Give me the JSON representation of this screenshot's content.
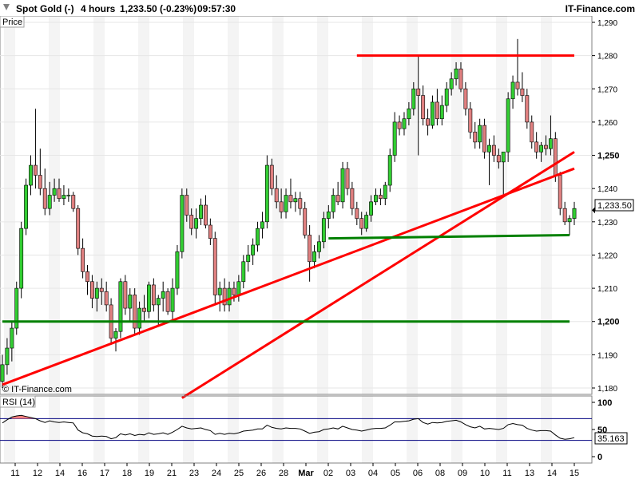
{
  "header": {
    "instrument": "Spot Gold (-)",
    "timeframe": "4 hours",
    "quote": "1,233.50 (-0.23%)",
    "time": "09:57:30",
    "brand": "IT-Finance.com"
  },
  "price_panel": {
    "label": "Price",
    "watermark": "© IT-Finance.com",
    "current_price_label": "1,233.50"
  },
  "rsi_panel": {
    "label": "RSI (14)",
    "current_value_label": "35.163",
    "level_labels": [
      "100",
      "50",
      "0"
    ]
  },
  "colors": {
    "up_candle": "#32cd32",
    "down_candle": "#e08080",
    "trendline_red": "#ff0000",
    "trendline_green": "#008000",
    "rsi_line": "#000000",
    "rsi_level_lines": "#000080",
    "rsi_overbought_fill": "#ff8080"
  },
  "chart_data": [
    {
      "type": "candlestick",
      "title": "Spot Gold (-)",
      "timeframe": "4 hours",
      "y_unit": "price",
      "ylim": [
        1178,
        1292
      ],
      "y_ticks": [
        1180,
        1190,
        1200,
        1210,
        1220,
        1230,
        1240,
        1250,
        1260,
        1270,
        1280,
        1290
      ],
      "y_tick_labels": [
        "1,180",
        "1,190",
        "1,200",
        "1,210",
        "1,220",
        "1,230",
        "1,240",
        "1,250",
        "1,260",
        "1,270",
        "1,280",
        "1,290"
      ],
      "x_tick_labels": [
        "11",
        "12",
        "14",
        "16",
        "17",
        "18",
        "19",
        "21",
        "23",
        "24",
        "25",
        "26",
        "28",
        "Mar",
        "02",
        "03",
        "04",
        "05",
        "06",
        "08",
        "09",
        "10",
        "11",
        "13",
        "14",
        "15"
      ],
      "ohlc": [
        [
          1182,
          1190,
          1180,
          1187
        ],
        [
          1187,
          1195,
          1184,
          1192
        ],
        [
          1192,
          1200,
          1188,
          1198
        ],
        [
          1198,
          1212,
          1196,
          1210
        ],
        [
          1210,
          1230,
          1207,
          1228
        ],
        [
          1228,
          1243,
          1226,
          1241
        ],
        [
          1241,
          1250,
          1238,
          1247
        ],
        [
          1247,
          1264,
          1240,
          1244
        ],
        [
          1244,
          1252,
          1238,
          1240
        ],
        [
          1240,
          1246,
          1232,
          1234
        ],
        [
          1234,
          1242,
          1232,
          1238
        ],
        [
          1238,
          1243,
          1236,
          1240
        ],
        [
          1240,
          1243,
          1236,
          1237
        ],
        [
          1237,
          1241,
          1235,
          1238
        ],
        [
          1238,
          1240,
          1236,
          1238
        ],
        [
          1238,
          1239,
          1233,
          1234
        ],
        [
          1234,
          1235,
          1220,
          1222
        ],
        [
          1222,
          1225,
          1213,
          1215
        ],
        [
          1215,
          1217,
          1208,
          1212
        ],
        [
          1212,
          1214,
          1204,
          1207
        ],
        [
          1207,
          1212,
          1203,
          1210
        ],
        [
          1210,
          1213,
          1205,
          1209
        ],
        [
          1209,
          1212,
          1203,
          1205
        ],
        [
          1205,
          1207,
          1193,
          1195
        ],
        [
          1195,
          1198,
          1191,
          1197
        ],
        [
          1197,
          1213,
          1195,
          1212
        ],
        [
          1212,
          1214,
          1202,
          1204
        ],
        [
          1204,
          1210,
          1200,
          1208
        ],
        [
          1208,
          1210,
          1196,
          1198
        ],
        [
          1198,
          1206,
          1196,
          1204
        ],
        [
          1204,
          1208,
          1200,
          1203
        ],
        [
          1203,
          1212,
          1201,
          1211
        ],
        [
          1211,
          1213,
          1203,
          1205
        ],
        [
          1205,
          1208,
          1199,
          1207
        ],
        [
          1207,
          1212,
          1203,
          1209
        ],
        [
          1209,
          1210,
          1202,
          1203
        ],
        [
          1203,
          1213,
          1200,
          1210
        ],
        [
          1210,
          1223,
          1208,
          1221
        ],
        [
          1221,
          1240,
          1219,
          1238
        ],
        [
          1238,
          1240,
          1230,
          1232
        ],
        [
          1232,
          1234,
          1226,
          1228
        ],
        [
          1228,
          1234,
          1225,
          1231
        ],
        [
          1231,
          1237,
          1229,
          1235
        ],
        [
          1235,
          1238,
          1228,
          1229
        ],
        [
          1229,
          1231,
          1223,
          1225
        ],
        [
          1225,
          1227,
          1205,
          1208
        ],
        [
          1208,
          1212,
          1203,
          1210
        ],
        [
          1210,
          1213,
          1203,
          1205
        ],
        [
          1205,
          1212,
          1203,
          1210
        ],
        [
          1210,
          1212,
          1206,
          1208
        ],
        [
          1208,
          1214,
          1206,
          1212
        ],
        [
          1212,
          1220,
          1210,
          1218
        ],
        [
          1218,
          1223,
          1215,
          1220
        ],
        [
          1220,
          1225,
          1217,
          1223
        ],
        [
          1223,
          1230,
          1221,
          1228
        ],
        [
          1228,
          1233,
          1225,
          1230
        ],
        [
          1230,
          1250,
          1228,
          1247
        ],
        [
          1247,
          1249,
          1238,
          1240
        ],
        [
          1240,
          1244,
          1234,
          1236
        ],
        [
          1236,
          1240,
          1231,
          1233
        ],
        [
          1233,
          1240,
          1231,
          1238
        ],
        [
          1238,
          1243,
          1234,
          1236
        ],
        [
          1236,
          1239,
          1233,
          1237
        ],
        [
          1237,
          1239,
          1232,
          1234
        ],
        [
          1234,
          1236,
          1225,
          1226
        ],
        [
          1226,
          1229,
          1212,
          1218
        ],
        [
          1218,
          1223,
          1216,
          1221
        ],
        [
          1221,
          1226,
          1219,
          1224
        ],
        [
          1224,
          1233,
          1222,
          1231
        ],
        [
          1231,
          1235,
          1228,
          1233
        ],
        [
          1233,
          1240,
          1231,
          1238
        ],
        [
          1238,
          1242,
          1235,
          1236
        ],
        [
          1236,
          1248,
          1234,
          1246
        ],
        [
          1246,
          1248,
          1238,
          1240
        ],
        [
          1240,
          1242,
          1232,
          1234
        ],
        [
          1234,
          1236,
          1229,
          1231
        ],
        [
          1231,
          1233,
          1226,
          1228
        ],
        [
          1228,
          1233,
          1227,
          1232
        ],
        [
          1232,
          1238,
          1230,
          1236
        ],
        [
          1236,
          1240,
          1235,
          1238
        ],
        [
          1238,
          1240,
          1235,
          1237
        ],
        [
          1237,
          1242,
          1235,
          1241
        ],
        [
          1241,
          1252,
          1239,
          1250
        ],
        [
          1250,
          1263,
          1248,
          1260
        ],
        [
          1260,
          1262,
          1256,
          1258
        ],
        [
          1258,
          1263,
          1256,
          1261
        ],
        [
          1261,
          1266,
          1259,
          1264
        ],
        [
          1264,
          1272,
          1262,
          1270
        ],
        [
          1270,
          1280,
          1250,
          1268
        ],
        [
          1268,
          1271,
          1259,
          1261
        ],
        [
          1261,
          1264,
          1256,
          1259
        ],
        [
          1259,
          1268,
          1258,
          1266
        ],
        [
          1266,
          1270,
          1259,
          1261
        ],
        [
          1261,
          1268,
          1259,
          1265
        ],
        [
          1265,
          1272,
          1263,
          1270
        ],
        [
          1270,
          1275,
          1268,
          1273
        ],
        [
          1273,
          1278,
          1271,
          1276
        ],
        [
          1276,
          1278,
          1269,
          1270
        ],
        [
          1270,
          1272,
          1262,
          1264
        ],
        [
          1264,
          1266,
          1255,
          1257
        ],
        [
          1257,
          1260,
          1252,
          1254
        ],
        [
          1254,
          1261,
          1252,
          1259
        ],
        [
          1259,
          1261,
          1249,
          1251
        ],
        [
          1251,
          1255,
          1241,
          1253
        ],
        [
          1253,
          1256,
          1248,
          1250
        ],
        [
          1250,
          1252,
          1246,
          1248
        ],
        [
          1248,
          1250,
          1238,
          1251
        ],
        [
          1251,
          1269,
          1248,
          1267
        ],
        [
          1267,
          1274,
          1264,
          1272
        ],
        [
          1272,
          1285,
          1268,
          1270
        ],
        [
          1270,
          1275,
          1266,
          1268
        ],
        [
          1268,
          1270,
          1258,
          1260
        ],
        [
          1260,
          1262,
          1252,
          1254
        ],
        [
          1254,
          1257,
          1249,
          1251
        ],
        [
          1251,
          1254,
          1248,
          1253
        ],
        [
          1253,
          1256,
          1250,
          1252
        ],
        [
          1252,
          1262,
          1250,
          1255
        ],
        [
          1255,
          1257,
          1242,
          1244
        ],
        [
          1244,
          1245,
          1232,
          1234
        ],
        [
          1234,
          1236,
          1229,
          1230
        ],
        [
          1230,
          1232,
          1226,
          1231
        ],
        [
          1231,
          1236,
          1229,
          1234
        ]
      ],
      "trendlines": [
        {
          "color": "red",
          "from": {
            "bar": 0,
            "price": 1181
          },
          "to": {
            "bar": 121,
            "price": 1246
          }
        },
        {
          "color": "red",
          "from": {
            "bar": 38,
            "price": 1177
          },
          "to": {
            "bar": 121,
            "price": 1251
          }
        },
        {
          "color": "red",
          "from": {
            "bar": 75,
            "price": 1280
          },
          "to": {
            "bar": 121,
            "price": 1280
          }
        },
        {
          "color": "green",
          "from": {
            "bar": 69,
            "price": 1225
          },
          "to": {
            "bar": 120,
            "price": 1226
          }
        },
        {
          "color": "green",
          "from": {
            "bar": 0,
            "price": 1200
          },
          "to": {
            "bar": 120,
            "price": 1200
          }
        }
      ],
      "current_price": 1233.5
    },
    {
      "type": "line",
      "title": "RSI (14)",
      "ylim": [
        0,
        100
      ],
      "y_ticks": [
        0,
        50,
        100
      ],
      "levels": [
        30,
        70
      ],
      "current_value": 35.163,
      "values": [
        62,
        68,
        73,
        75,
        76,
        74,
        72,
        70,
        66,
        63,
        66,
        64,
        63,
        64,
        63,
        62,
        49,
        44,
        42,
        38,
        37,
        38,
        37,
        33,
        35,
        42,
        40,
        42,
        39,
        41,
        40,
        44,
        41,
        42,
        44,
        41,
        45,
        50,
        56,
        53,
        51,
        52,
        53,
        50,
        48,
        41,
        43,
        41,
        43,
        42,
        44,
        47,
        48,
        49,
        51,
        51,
        58,
        54,
        52,
        51,
        53,
        52,
        52,
        51,
        47,
        43,
        45,
        46,
        50,
        51,
        53,
        51,
        56,
        53,
        50,
        49,
        47,
        49,
        51,
        52,
        52,
        53,
        58,
        64,
        64,
        65,
        66,
        69,
        70,
        63,
        60,
        63,
        62,
        63,
        65,
        66,
        67,
        64,
        59,
        55,
        53,
        56,
        51,
        52,
        51,
        50,
        52,
        59,
        61,
        59,
        58,
        52,
        49,
        47,
        48,
        48,
        47,
        40,
        34,
        32,
        33,
        35
      ]
    }
  ]
}
